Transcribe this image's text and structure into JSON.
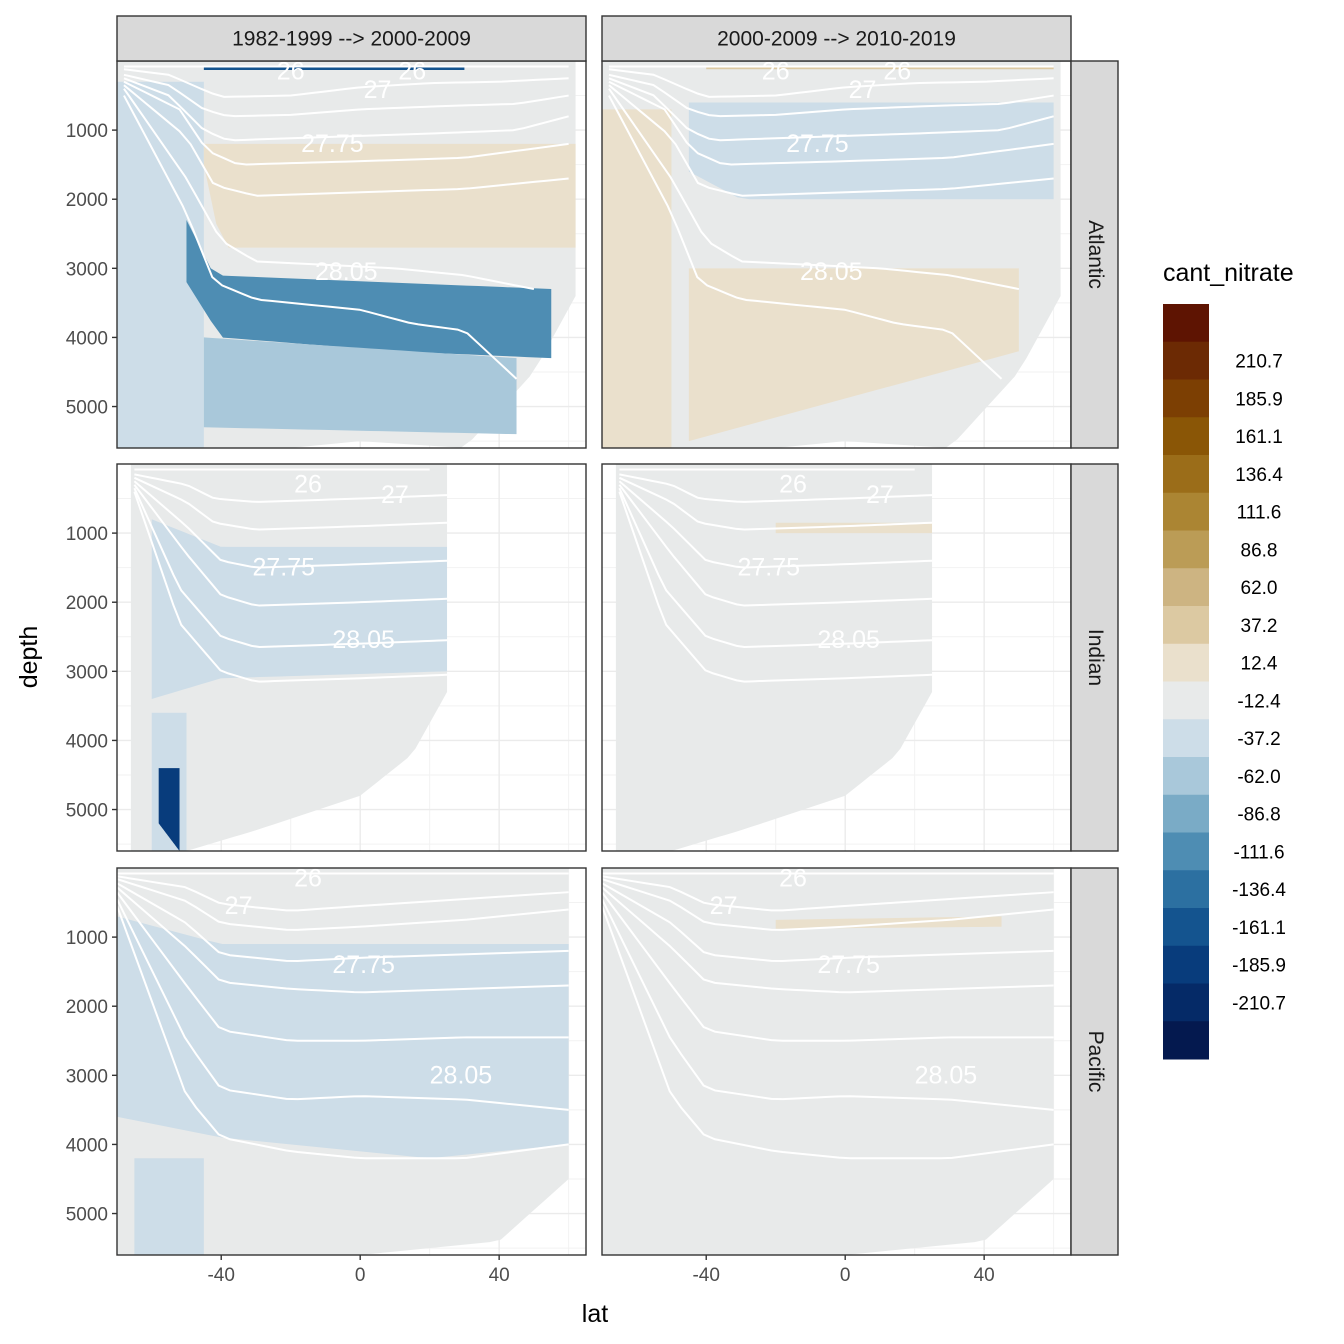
{
  "chart_data": {
    "type": "heatmap",
    "subtype": "faceted filled-contour depth sections",
    "x_label": "lat",
    "y_label": "depth",
    "x_ticks": [
      -40,
      0,
      40
    ],
    "y_ticks": [
      1000,
      2000,
      3000,
      4000,
      5000
    ],
    "xlim": [
      -70,
      65
    ],
    "ylim": [
      5600,
      0
    ],
    "y_reversed": true,
    "grid": true,
    "columns": [
      "1982-1999 --> 2000-2009",
      "2000-2009 --> 2010-2019"
    ],
    "rows": [
      "Atlantic",
      "Indian",
      "Pacific"
    ],
    "legend": {
      "title": "cant_nitrate",
      "placement": "right",
      "breaks": [
        "210.7",
        "185.9",
        "161.1",
        "136.4",
        "111.6",
        "86.8",
        "62.0",
        "37.2",
        "12.4",
        "-12.4",
        "-37.2",
        "-62.0",
        "-86.8",
        "-111.6",
        "-136.4",
        "-161.1",
        "-185.9",
        "-210.7"
      ],
      "colors": [
        "#5e1402",
        "#6c2a04",
        "#7c3f03",
        "#8a5606",
        "#9b6d19",
        "#ab8533",
        "#bb9c56",
        "#cdb482",
        "#dcc9a2",
        "#eae0cc",
        "#e8eaea",
        "#cddde8",
        "#a9c8da",
        "#7aabc6",
        "#4e8db3",
        "#2c70a1",
        "#14548f",
        "#083c7c",
        "#052a67",
        "#04194f"
      ]
    },
    "isopycnal_labels": [
      "26",
      "27",
      "27.75",
      "28.05"
    ],
    "panels": [
      {
        "row": "Atlantic",
        "column": "1982-1999 --> 2000-2009",
        "labels": [
          "26",
          "26",
          "27",
          "27.75",
          "28.05"
        ]
      },
      {
        "row": "Atlantic",
        "column": "2000-2009 --> 2010-2019",
        "labels": [
          "26",
          "26",
          "27",
          "27.75",
          "28.05"
        ]
      },
      {
        "row": "Indian",
        "column": "1982-1999 --> 2000-2009",
        "labels": [
          "26",
          "27",
          "27.75",
          "28.05"
        ]
      },
      {
        "row": "Indian",
        "column": "2000-2009 --> 2010-2019",
        "labels": [
          "26",
          "27",
          "27.75",
          "28.05"
        ]
      },
      {
        "row": "Pacific",
        "column": "1982-1999 --> 2000-2009",
        "labels": [
          "26",
          "27",
          "27.75",
          "28.05"
        ]
      },
      {
        "row": "Pacific",
        "column": "2000-2009 --> 2010-2019",
        "labels": [
          "26",
          "27",
          "27.75",
          "28.05"
        ]
      }
    ]
  }
}
